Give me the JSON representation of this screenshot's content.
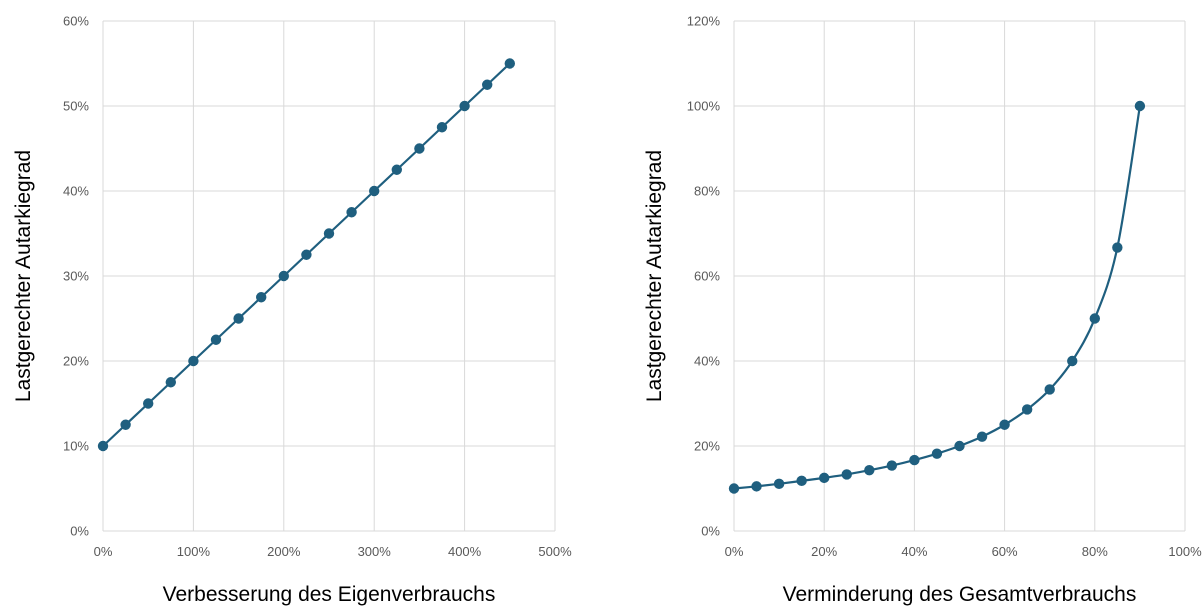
{
  "colors": {
    "series": "#1f5f7f",
    "grid": "#d9d9d9",
    "tick_text": "#595959",
    "title_text": "#000000"
  },
  "chart_data": [
    {
      "type": "line",
      "name": "left-chart",
      "xlabel": "Verbesserung des Eigenverbrauchs",
      "ylabel": "Lastgerechter Autarkiegrad",
      "xlim": [
        0,
        500
      ],
      "ylim": [
        0,
        60
      ],
      "x_ticks": [
        0,
        100,
        200,
        300,
        400,
        500
      ],
      "x_tick_labels": [
        "0%",
        "100%",
        "200%",
        "300%",
        "400%",
        "500%"
      ],
      "y_ticks": [
        0,
        10,
        20,
        30,
        40,
        50,
        60
      ],
      "y_tick_labels": [
        "0%",
        "10%",
        "20%",
        "30%",
        "40%",
        "50%",
        "60%"
      ],
      "grid": true,
      "smooth": false,
      "series": [
        {
          "x": [
            0,
            25,
            50,
            75,
            100,
            125,
            150,
            175,
            200,
            225,
            250,
            275,
            300,
            325,
            350,
            375,
            400,
            425,
            450
          ],
          "y": [
            10,
            12.5,
            15,
            17.5,
            20,
            22.5,
            25,
            27.5,
            30,
            32.5,
            35,
            37.5,
            40,
            42.5,
            45,
            47.5,
            50,
            52.5,
            55
          ]
        }
      ]
    },
    {
      "type": "line",
      "name": "right-chart",
      "xlabel": "Verminderung des Gesamtverbrauchs",
      "ylabel": "Lastgerechter Autarkiegrad",
      "xlim": [
        0,
        100
      ],
      "ylim": [
        0,
        120
      ],
      "x_ticks": [
        0,
        20,
        40,
        60,
        80,
        100
      ],
      "x_tick_labels": [
        "0%",
        "20%",
        "40%",
        "60%",
        "80%",
        "100%"
      ],
      "y_ticks": [
        0,
        20,
        40,
        60,
        80,
        100,
        120
      ],
      "y_tick_labels": [
        "0%",
        "20%",
        "40%",
        "60%",
        "80%",
        "100%",
        "120%"
      ],
      "grid": true,
      "smooth": true,
      "series": [
        {
          "x": [
            0,
            5,
            10,
            15,
            20,
            25,
            30,
            35,
            40,
            45,
            50,
            55,
            60,
            65,
            70,
            75,
            80,
            85,
            90
          ],
          "y": [
            10,
            10.5,
            11.1,
            11.8,
            12.5,
            13.3,
            14.3,
            15.4,
            16.7,
            18.2,
            20,
            22.2,
            25,
            28.6,
            33.3,
            40,
            50,
            66.7,
            100
          ]
        }
      ]
    }
  ]
}
